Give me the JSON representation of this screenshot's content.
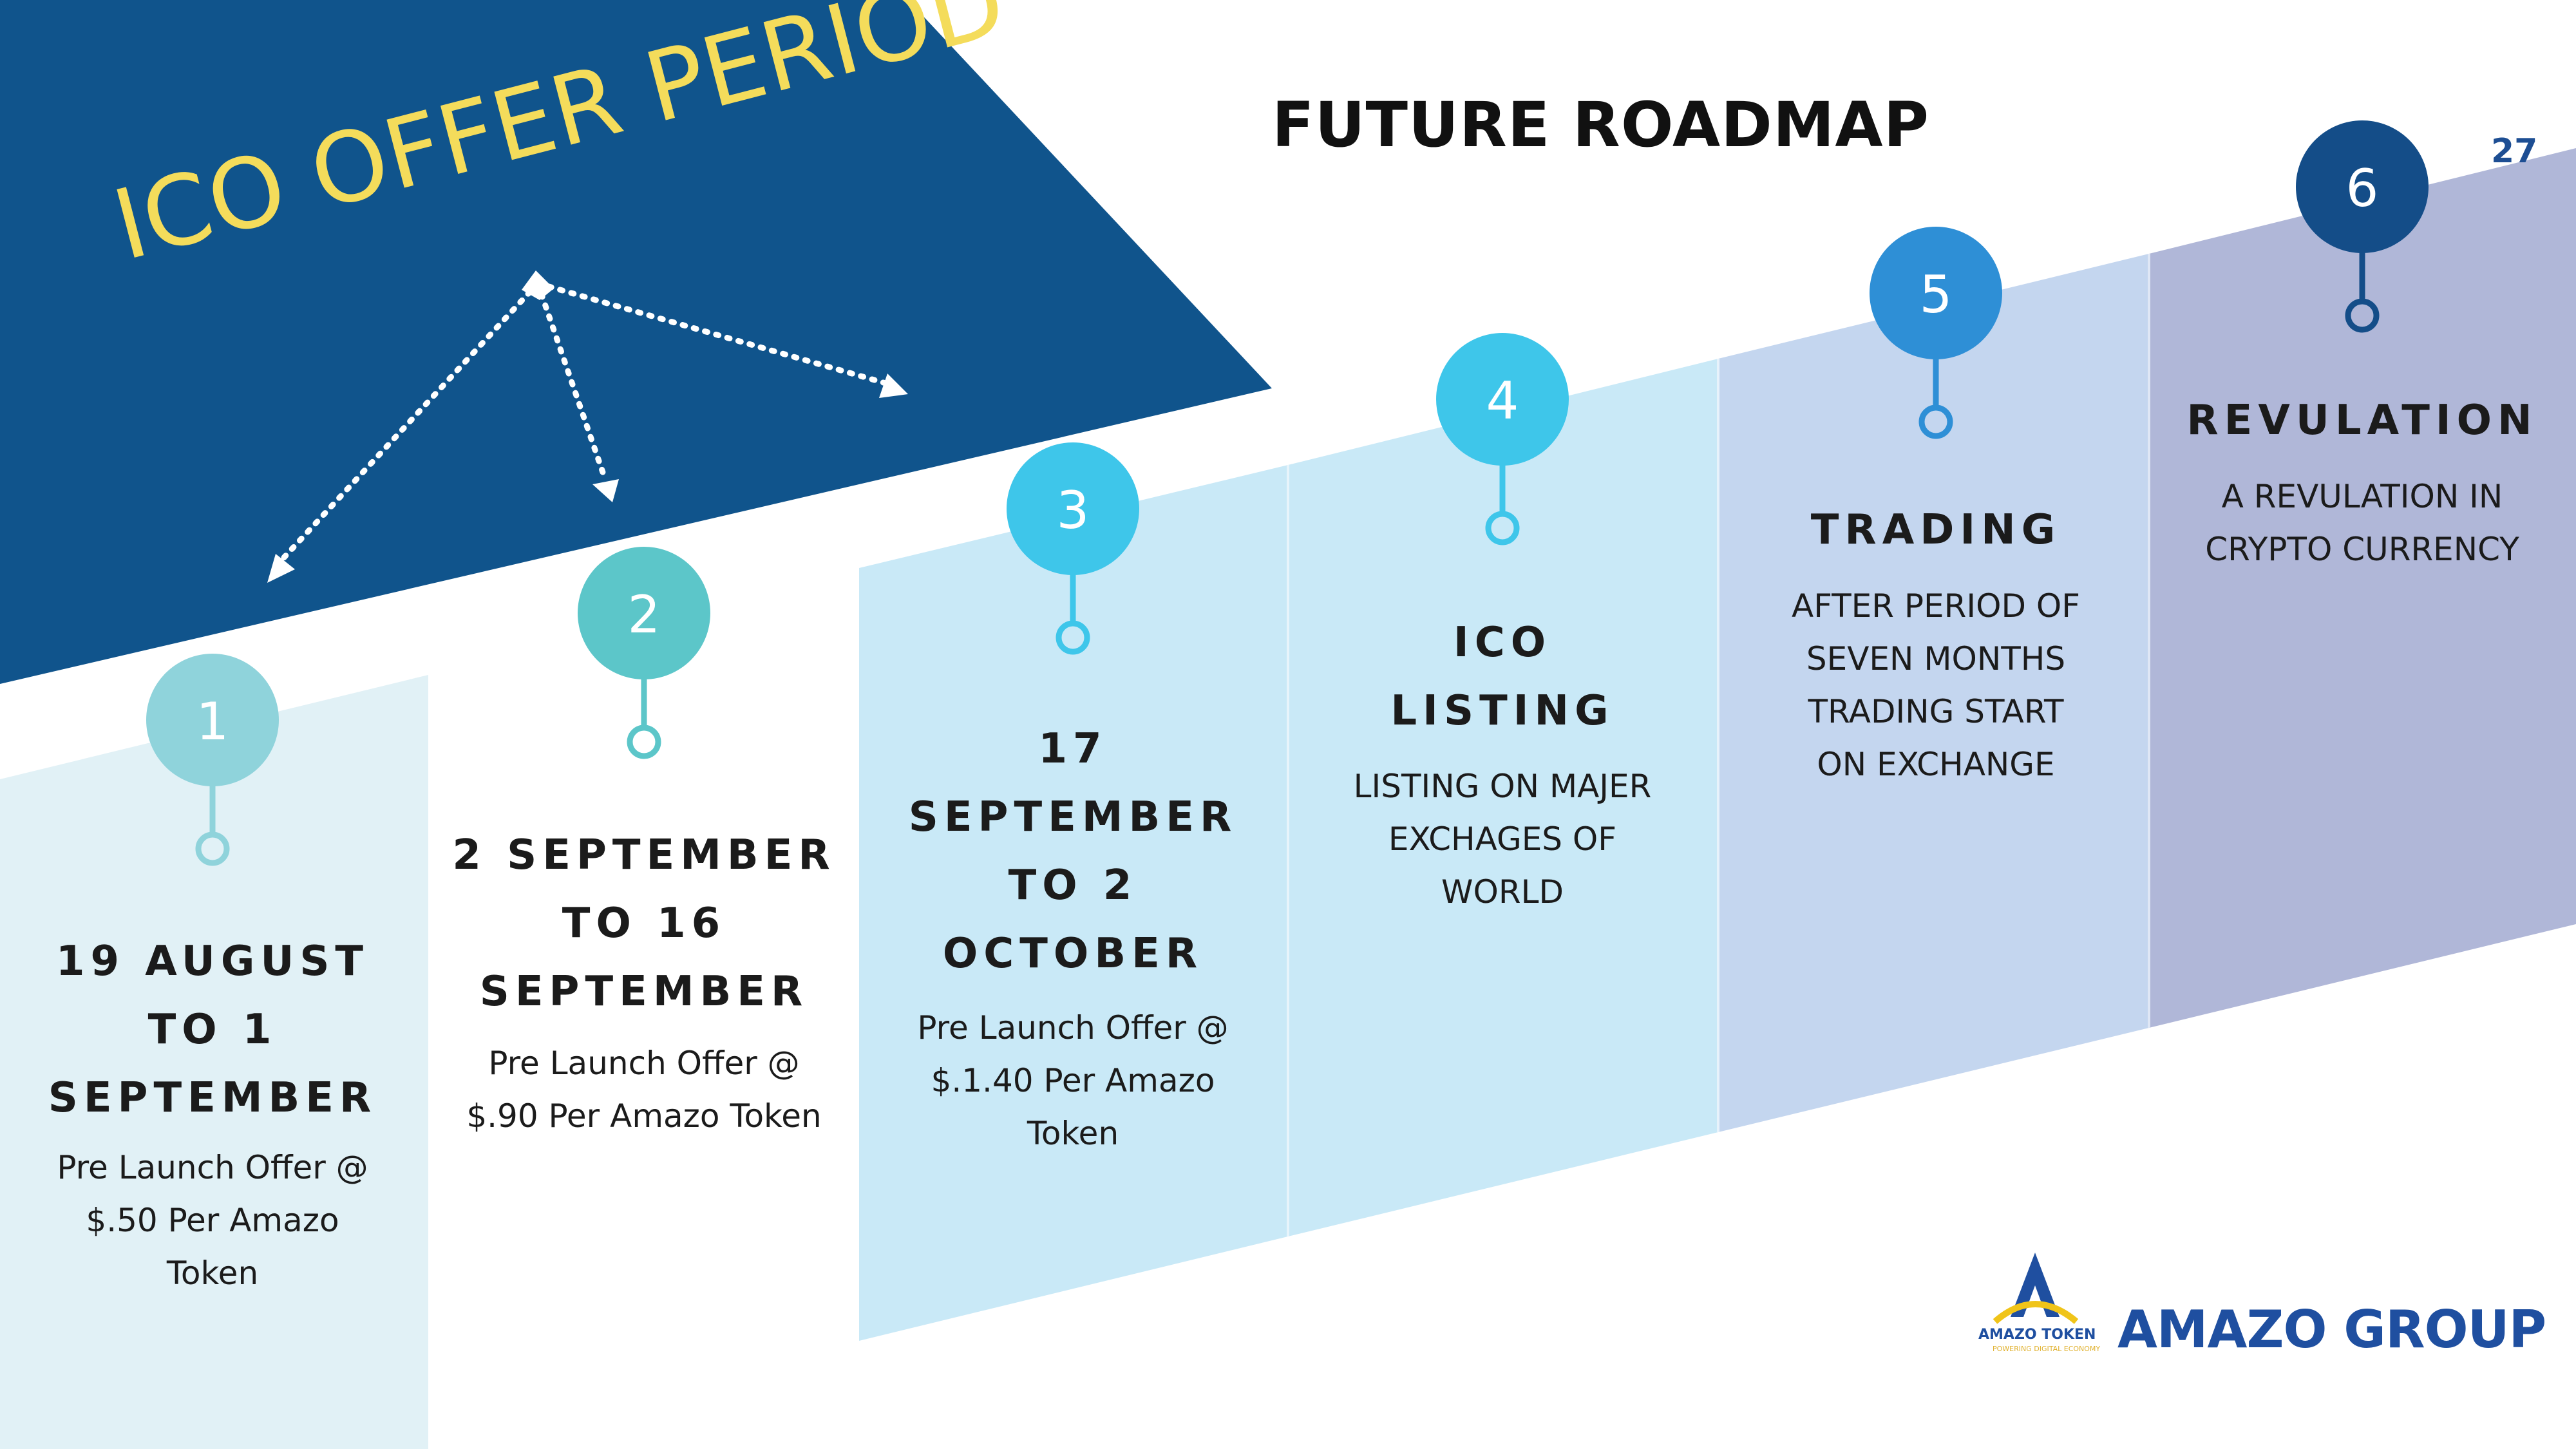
{
  "title": "FUTURE ROADMAP",
  "page_number": "27",
  "ico_period_label": "ICO OFFER PERIOD",
  "colors": {
    "navy": "#10548c",
    "yellow": "#f4dc5b",
    "step1": "#8fd3db",
    "step2": "#5cc6c9",
    "step3": "#3ec6ea",
    "step4": "#3ec6ea",
    "step5": "#2e8fd6",
    "step6": "#144d88"
  },
  "steps": [
    {
      "number": "1",
      "heading_lines": [
        "19 AUGUST",
        "TO 1",
        "SEPTEMBER"
      ],
      "desc_lines": [
        "Pre Launch Offer @",
        "$.50 Per Amazo",
        "Token"
      ]
    },
    {
      "number": "2",
      "heading_lines": [
        "2 SEPTEMBER",
        "TO 16",
        "SEPTEMBER"
      ],
      "desc_lines": [
        "Pre Launch Offer @",
        "$.90 Per Amazo Token"
      ]
    },
    {
      "number": "3",
      "heading_lines": [
        "17",
        "SEPTEMBER",
        "TO 2",
        "OCTOBER"
      ],
      "desc_lines": [
        "Pre Launch Offer @",
        "$.1.40 Per Amazo",
        "Token"
      ]
    },
    {
      "number": "4",
      "heading_lines": [
        "ICO",
        "LISTING"
      ],
      "desc_lines": [
        "LISTING ON MAJER",
        "EXCHAGES OF",
        "WORLD"
      ]
    },
    {
      "number": "5",
      "heading_lines": [
        "TRADING"
      ],
      "desc_lines": [
        "AFTER PERIOD OF",
        "SEVEN MONTHS",
        "TRADING START",
        "ON EXCHANGE"
      ]
    },
    {
      "number": "6",
      "heading_lines": [
        "REVULATION"
      ],
      "desc_lines": [
        "A REVULATION IN",
        "CRYPTO CURRENCY"
      ]
    }
  ],
  "logo": {
    "icon_letter": "A",
    "small_text": "AMAZO TOKEN",
    "tagline": "POWERING DIGITAL ECONOMY",
    "company": "AMAZO GROUP"
  }
}
